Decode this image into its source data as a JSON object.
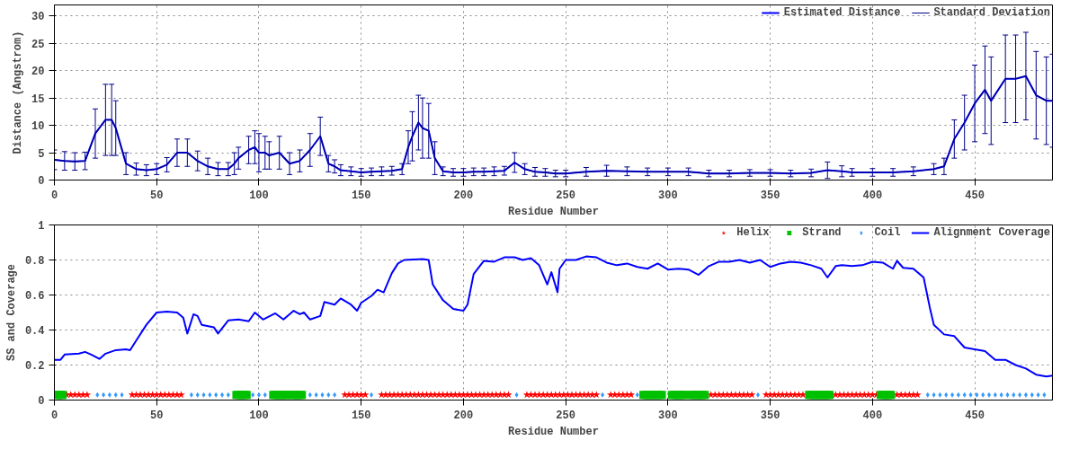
{
  "chart_data": [
    {
      "type": "line",
      "xlabel": "Residue Number",
      "ylabel": "Distance (Angstrom)",
      "xlim": [
        0,
        488
      ],
      "ylim": [
        0,
        32
      ],
      "xticks": [
        0,
        50,
        100,
        150,
        200,
        250,
        300,
        350,
        400,
        450
      ],
      "yticks": [
        0,
        5,
        10,
        15,
        20,
        25,
        30
      ],
      "grid": true,
      "legend": "top right",
      "x": [
        0,
        5,
        10,
        15,
        20,
        25,
        28,
        30,
        35,
        40,
        45,
        50,
        55,
        60,
        65,
        70,
        75,
        80,
        85,
        88,
        90,
        95,
        98,
        100,
        103,
        105,
        110,
        115,
        120,
        125,
        130,
        134,
        137,
        140,
        145,
        150,
        155,
        160,
        165,
        170,
        173,
        175,
        178,
        180,
        183,
        186,
        190,
        195,
        200,
        205,
        210,
        215,
        220,
        225,
        230,
        235,
        240,
        245,
        250,
        260,
        270,
        280,
        290,
        300,
        310,
        320,
        330,
        340,
        350,
        360,
        370,
        378,
        385,
        390,
        400,
        410,
        420,
        430,
        435,
        440,
        445,
        450,
        455,
        458,
        465,
        470,
        475,
        480,
        485,
        488
      ],
      "series": [
        {
          "name": "Estimated Distance",
          "color": "#0000ff",
          "values": [
            3.7,
            3.5,
            3.4,
            3.5,
            8.5,
            11,
            11,
            9.5,
            3,
            2,
            1.8,
            2,
            2.8,
            5,
            5,
            3.5,
            2.5,
            2,
            2,
            3,
            4,
            5.5,
            6,
            5,
            5,
            4.5,
            5,
            3,
            3.5,
            5.5,
            8,
            3,
            2.5,
            1.8,
            1.6,
            1.4,
            1.5,
            1.6,
            1.7,
            2,
            6,
            8,
            10.5,
            9.5,
            9,
            4,
            1.6,
            1.4,
            1.4,
            1.5,
            1.5,
            1.6,
            1.7,
            3.2,
            2,
            1.5,
            1.4,
            1.2,
            1.2,
            1.5,
            1.7,
            1.6,
            1.5,
            1.5,
            1.5,
            1.2,
            1.2,
            1.3,
            1.3,
            1.2,
            1.3,
            1.8,
            1.6,
            1.4,
            1.4,
            1.4,
            1.6,
            2,
            2.5,
            7.5,
            10.5,
            14,
            16.5,
            14.5,
            18.5,
            18.5,
            19,
            15.5,
            14.5,
            14.5
          ]
        },
        {
          "name": "Standard Deviation",
          "color": "#00008b",
          "values": [
            3.7,
            3.5,
            3.4,
            3.5,
            8.5,
            11,
            11,
            9.5,
            3,
            2,
            1.8,
            2,
            2.8,
            5,
            5,
            3.5,
            2.5,
            2,
            2,
            3,
            4,
            5.5,
            6,
            5,
            5,
            4.5,
            5,
            3,
            3.5,
            5.5,
            8,
            3,
            2.5,
            1.8,
            1.6,
            1.4,
            1.5,
            1.6,
            1.7,
            2,
            6,
            8,
            10.5,
            9.5,
            9,
            4,
            1.6,
            1.4,
            1.4,
            1.5,
            1.5,
            1.6,
            1.7,
            3.2,
            2,
            1.5,
            1.4,
            1.2,
            1.2,
            1.5,
            1.7,
            1.6,
            1.5,
            1.5,
            1.5,
            1.2,
            1.2,
            1.3,
            1.3,
            1.2,
            1.3,
            1.8,
            1.6,
            1.4,
            1.4,
            1.4,
            1.6,
            2,
            2.5,
            7.5,
            10.5,
            14,
            16.5,
            14.5,
            18.5,
            18.5,
            19,
            15.5,
            14.5,
            14.5
          ],
          "errors": [
            1.8,
            1.7,
            1.6,
            1.6,
            4.5,
            6.5,
            6.5,
            5,
            2,
            1.1,
            1,
            1,
            1.3,
            2.5,
            2.5,
            1.8,
            1.5,
            1.2,
            1.2,
            2,
            2,
            2.5,
            3,
            3.5,
            3,
            2.5,
            3,
            2,
            2,
            3,
            3.5,
            1.5,
            1.2,
            1,
            0.8,
            0.7,
            0.7,
            0.8,
            0.8,
            1,
            3,
            4.5,
            5,
            5.5,
            5,
            3,
            0.8,
            0.7,
            0.7,
            0.7,
            0.7,
            0.8,
            0.8,
            1.8,
            1,
            0.8,
            0.7,
            0.6,
            0.6,
            0.8,
            1,
            0.8,
            0.7,
            0.7,
            0.7,
            0.6,
            0.6,
            0.6,
            0.6,
            0.6,
            0.7,
            1.5,
            1,
            0.7,
            0.7,
            0.7,
            0.8,
            1,
            1.5,
            3.5,
            5,
            7,
            8,
            8,
            8,
            8,
            8,
            8,
            8,
            8.5
          ]
        }
      ]
    },
    {
      "type": "line",
      "xlabel": "Residue Number",
      "ylabel": "SS and Coverage",
      "xlim": [
        0,
        488
      ],
      "ylim": [
        0,
        1
      ],
      "xticks": [
        0,
        50,
        100,
        150,
        200,
        250,
        300,
        350,
        400,
        450
      ],
      "yticks": [
        0,
        0.2,
        0.4,
        0.6,
        0.8,
        1
      ],
      "grid": true,
      "legend": "top right",
      "series": [
        {
          "name": "Helix",
          "type": "scatter",
          "marker": "star",
          "color": "#ff0000",
          "x": [
            6,
            8,
            10,
            12,
            14,
            16,
            38,
            40,
            42,
            44,
            46,
            48,
            50,
            52,
            54,
            56,
            58,
            60,
            62,
            142,
            144,
            146,
            148,
            150,
            152,
            160,
            162,
            164,
            166,
            168,
            170,
            172,
            174,
            176,
            178,
            180,
            182,
            184,
            186,
            188,
            190,
            192,
            194,
            196,
            198,
            200,
            202,
            204,
            206,
            208,
            210,
            212,
            214,
            216,
            218,
            220,
            222,
            231,
            233,
            235,
            237,
            239,
            241,
            243,
            245,
            247,
            249,
            251,
            253,
            255,
            257,
            259,
            261,
            263,
            265,
            272,
            274,
            276,
            278,
            280,
            282,
            321,
            323,
            325,
            327,
            329,
            331,
            333,
            335,
            337,
            339,
            341,
            348,
            350,
            352,
            354,
            356,
            358,
            360,
            362,
            364,
            366,
            382,
            384,
            386,
            388,
            390,
            392,
            394,
            396,
            398,
            400,
            402,
            412,
            414,
            416,
            418,
            420,
            422
          ],
          "values": [
            0.03,
            0.03,
            0.03,
            0.03,
            0.03,
            0.03,
            0.03,
            0.03,
            0.03,
            0.03,
            0.03,
            0.03,
            0.03,
            0.03,
            0.03,
            0.03,
            0.03,
            0.03,
            0.03,
            0.03,
            0.03,
            0.03,
            0.03,
            0.03,
            0.03,
            0.03,
            0.03,
            0.03,
            0.03,
            0.03,
            0.03,
            0.03,
            0.03,
            0.03,
            0.03,
            0.03,
            0.03,
            0.03,
            0.03,
            0.03,
            0.03,
            0.03,
            0.03,
            0.03,
            0.03,
            0.03,
            0.03,
            0.03,
            0.03,
            0.03,
            0.03,
            0.03,
            0.03,
            0.03,
            0.03,
            0.03,
            0.03,
            0.03,
            0.03,
            0.03,
            0.03,
            0.03,
            0.03,
            0.03,
            0.03,
            0.03,
            0.03,
            0.03,
            0.03,
            0.03,
            0.03,
            0.03,
            0.03,
            0.03,
            0.03,
            0.03,
            0.03,
            0.03,
            0.03,
            0.03,
            0.03,
            0.03,
            0.03,
            0.03,
            0.03,
            0.03,
            0.03,
            0.03,
            0.03,
            0.03,
            0.03,
            0.03,
            0.03,
            0.03,
            0.03,
            0.03,
            0.03,
            0.03,
            0.03,
            0.03,
            0.03,
            0.03,
            0.03,
            0.03,
            0.03,
            0.03,
            0.03,
            0.03,
            0.03,
            0.03,
            0.03,
            0.03,
            0.03,
            0.03,
            0.03,
            0.03,
            0.03,
            0.03,
            0.03
          ]
        },
        {
          "name": "Strand",
          "type": "scatter",
          "marker": "square",
          "color": "#00c000",
          "x": [
            1,
            2,
            3,
            4,
            89,
            90,
            91,
            92,
            93,
            94,
            107,
            108,
            109,
            110,
            111,
            112,
            113,
            114,
            116,
            117,
            118,
            119,
            120,
            121,
            288,
            289,
            290,
            291,
            292,
            293,
            294,
            295,
            296,
            297,
            302,
            303,
            304,
            305,
            306,
            307,
            308,
            311,
            312,
            313,
            314,
            315,
            316,
            317,
            318,
            369,
            370,
            371,
            372,
            373,
            374,
            375,
            376,
            377,
            378,
            379,
            404,
            405,
            406,
            407,
            408,
            409
          ],
          "values": [
            0.03,
            0.03,
            0.03,
            0.03,
            0.03,
            0.03,
            0.03,
            0.03,
            0.03,
            0.03,
            0.03,
            0.03,
            0.03,
            0.03,
            0.03,
            0.03,
            0.03,
            0.03,
            0.03,
            0.03,
            0.03,
            0.03,
            0.03,
            0.03,
            0.03,
            0.03,
            0.03,
            0.03,
            0.03,
            0.03,
            0.03,
            0.03,
            0.03,
            0.03,
            0.03,
            0.03,
            0.03,
            0.03,
            0.03,
            0.03,
            0.03,
            0.03,
            0.03,
            0.03,
            0.03,
            0.03,
            0.03,
            0.03,
            0.03,
            0.03,
            0.03,
            0.03,
            0.03,
            0.03,
            0.03,
            0.03,
            0.03,
            0.03,
            0.03,
            0.03,
            0.03,
            0.03,
            0.03,
            0.03,
            0.03,
            0.03
          ]
        },
        {
          "name": "Coil",
          "type": "scatter",
          "marker": "diamond",
          "color": "#3399ff",
          "x": [
            21,
            24,
            27,
            30,
            33,
            67,
            70,
            73,
            76,
            79,
            82,
            85,
            97,
            100,
            103,
            125,
            128,
            131,
            134,
            137,
            155,
            226,
            268,
            285,
            344,
            427,
            430,
            433,
            436,
            439,
            442,
            445,
            448,
            451,
            454,
            457,
            460,
            463,
            466,
            469,
            472,
            475,
            478,
            481,
            484
          ],
          "values": [
            0.03,
            0.03,
            0.03,
            0.03,
            0.03,
            0.03,
            0.03,
            0.03,
            0.03,
            0.03,
            0.03,
            0.03,
            0.03,
            0.03,
            0.03,
            0.03,
            0.03,
            0.03,
            0.03,
            0.03,
            0.03,
            0.03,
            0.03,
            0.03,
            0.03,
            0.03,
            0.03,
            0.03,
            0.03,
            0.03,
            0.03,
            0.03,
            0.03,
            0.03,
            0.03,
            0.03,
            0.03,
            0.03,
            0.03,
            0.03,
            0.03,
            0.03,
            0.03,
            0.03,
            0.03
          ]
        },
        {
          "name": "Alignment Coverage",
          "color": "#0000ff",
          "x": [
            0,
            3,
            5,
            12,
            15,
            18,
            22,
            25,
            30,
            35,
            37,
            40,
            45,
            50,
            55,
            60,
            63,
            65,
            68,
            70,
            72,
            78,
            80,
            85,
            90,
            95,
            98,
            102,
            108,
            112,
            117,
            120,
            122,
            125,
            130,
            132,
            137,
            140,
            145,
            148,
            150,
            155,
            158,
            161,
            165,
            168,
            171,
            180,
            183,
            185,
            190,
            195,
            200,
            202,
            205,
            210,
            215,
            220,
            225,
            229,
            233,
            237,
            241,
            243,
            246,
            247,
            250,
            255,
            260,
            265,
            270,
            275,
            280,
            285,
            290,
            295,
            300,
            305,
            310,
            315,
            320,
            325,
            330,
            335,
            340,
            345,
            350,
            355,
            360,
            365,
            370,
            375,
            378,
            382,
            385,
            390,
            395,
            400,
            405,
            410,
            412,
            415,
            420,
            425,
            428,
            430,
            435,
            440,
            445,
            450,
            455,
            460,
            465,
            470,
            475,
            480,
            485,
            488
          ],
          "values": [
            0.23,
            0.23,
            0.26,
            0.265,
            0.275,
            0.26,
            0.235,
            0.265,
            0.285,
            0.29,
            0.285,
            0.34,
            0.43,
            0.5,
            0.505,
            0.5,
            0.47,
            0.38,
            0.49,
            0.48,
            0.43,
            0.415,
            0.38,
            0.455,
            0.46,
            0.45,
            0.5,
            0.46,
            0.495,
            0.46,
            0.51,
            0.49,
            0.5,
            0.46,
            0.48,
            0.56,
            0.545,
            0.58,
            0.545,
            0.51,
            0.555,
            0.595,
            0.63,
            0.615,
            0.725,
            0.78,
            0.8,
            0.805,
            0.8,
            0.66,
            0.57,
            0.52,
            0.51,
            0.545,
            0.72,
            0.795,
            0.79,
            0.815,
            0.815,
            0.8,
            0.81,
            0.77,
            0.66,
            0.73,
            0.615,
            0.75,
            0.8,
            0.8,
            0.82,
            0.815,
            0.785,
            0.77,
            0.78,
            0.76,
            0.75,
            0.78,
            0.745,
            0.75,
            0.745,
            0.715,
            0.765,
            0.79,
            0.79,
            0.8,
            0.785,
            0.8,
            0.76,
            0.78,
            0.79,
            0.785,
            0.77,
            0.75,
            0.7,
            0.765,
            0.77,
            0.765,
            0.77,
            0.79,
            0.785,
            0.75,
            0.795,
            0.755,
            0.75,
            0.7,
            0.53,
            0.43,
            0.375,
            0.365,
            0.3,
            0.29,
            0.28,
            0.23,
            0.23,
            0.2,
            0.18,
            0.145,
            0.135,
            0.14
          ]
        }
      ]
    }
  ]
}
